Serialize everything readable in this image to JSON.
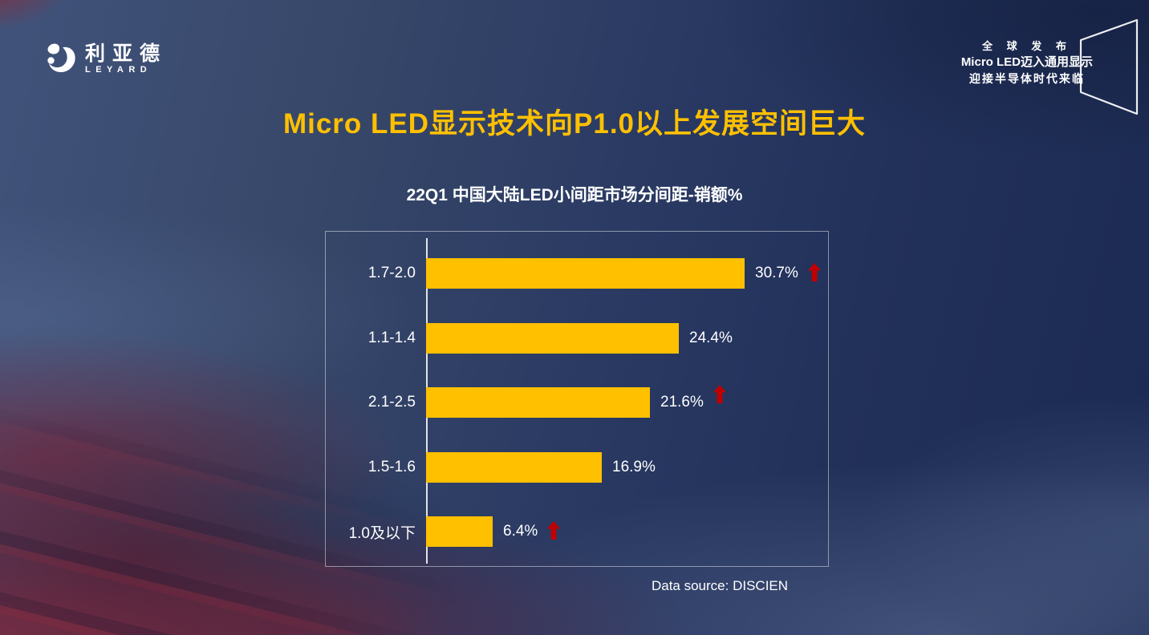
{
  "logo": {
    "cn": "利亚德",
    "en": "LEYARD"
  },
  "banner": {
    "line1": "全 球 发 布",
    "line2": "Micro LED迈入通用显示",
    "line3": "迎接半导体时代来临"
  },
  "title": "Micro LED显示技术向P1.0以上发展空间巨大",
  "data_source": "Data source: DISCIEN",
  "colors": {
    "accent_gold": "#FFC000",
    "arrow_red": "#C00000",
    "text_white": "#FFFFFF",
    "background_navy": "#22315A"
  },
  "chart_data": {
    "type": "bar",
    "orientation": "horizontal",
    "title": "22Q1 中国大陆LED小间距市场分间距-销额%",
    "categories": [
      "1.7-2.0",
      "1.1-1.4",
      "2.1-2.5",
      "1.5-1.6",
      "1.0及以下"
    ],
    "values": [
      30.7,
      24.4,
      21.6,
      16.9,
      6.4
    ],
    "value_labels": [
      "30.7%",
      "24.4%",
      "21.6%",
      "16.9%",
      "6.4%"
    ],
    "up_arrows": [
      true,
      false,
      true,
      false,
      true
    ],
    "bar_color": "#FFC000",
    "xlim": [
      0,
      33
    ],
    "grid": false,
    "legend": null
  }
}
